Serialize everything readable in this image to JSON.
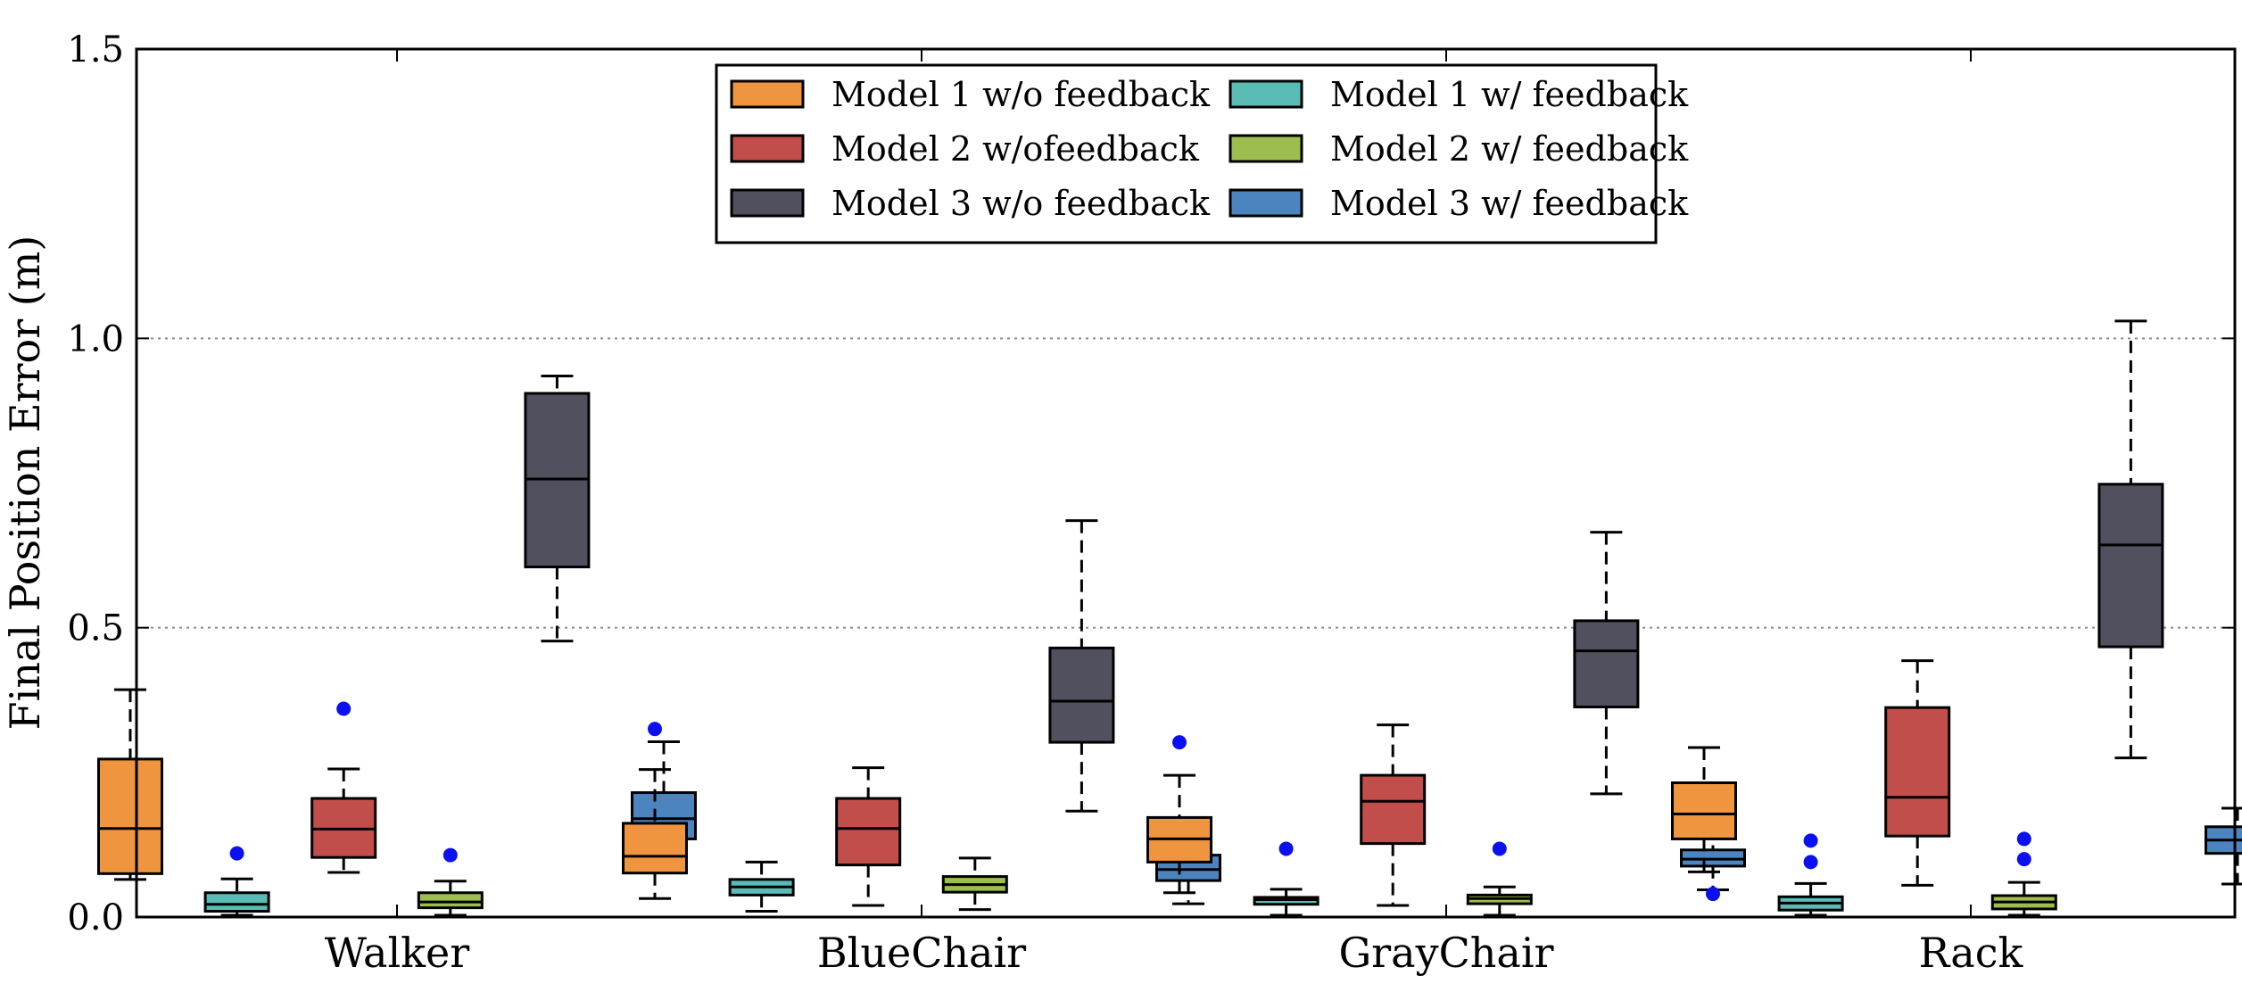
{
  "chart_data": {
    "type": "boxplot",
    "title": "",
    "xlabel": "",
    "ylabel": "Final Position Error (m)",
    "ylim": [
      0.0,
      1.5
    ],
    "yticks": [
      "0.0",
      "0.5",
      "1.0",
      "1.5"
    ],
    "ytick_values": [
      0.0,
      0.5,
      1.0,
      1.5
    ],
    "grid_lines": [
      0.5,
      1.0
    ],
    "grid_style": "dotted horizontal",
    "legend_position": "top-center",
    "categories": [
      "Walker",
      "BlueChair",
      "GrayChair",
      "Rack"
    ],
    "series": [
      {
        "name": "Model 1 w/o feedback",
        "color": "#F0953F",
        "boxes": [
          {
            "whislo": 0.065,
            "q1": 0.075,
            "med": 0.153,
            "q3": 0.273,
            "whishi": 0.393,
            "fliers": []
          },
          {
            "whislo": 0.032,
            "q1": 0.076,
            "med": 0.105,
            "q3": 0.162,
            "whishi": 0.255,
            "fliers": [
              0.325
            ]
          },
          {
            "whislo": 0.042,
            "q1": 0.095,
            "med": 0.135,
            "q3": 0.172,
            "whishi": 0.245,
            "fliers": [
              0.302
            ]
          },
          {
            "whislo": 0.078,
            "q1": 0.135,
            "med": 0.178,
            "q3": 0.232,
            "whishi": 0.293,
            "fliers": []
          }
        ]
      },
      {
        "name": "Model 1 w/ feedback",
        "color": "#5BBCB6",
        "boxes": [
          {
            "whislo": 0.003,
            "q1": 0.01,
            "med": 0.022,
            "q3": 0.042,
            "whishi": 0.066,
            "fliers": [
              0.11
            ]
          },
          {
            "whislo": 0.01,
            "q1": 0.038,
            "med": 0.052,
            "q3": 0.065,
            "whishi": 0.095,
            "fliers": []
          },
          {
            "whislo": 0.003,
            "q1": 0.022,
            "med": 0.03,
            "q3": 0.034,
            "whishi": 0.048,
            "fliers": [
              0.118
            ]
          },
          {
            "whislo": 0.003,
            "q1": 0.012,
            "med": 0.024,
            "q3": 0.035,
            "whishi": 0.058,
            "fliers": [
              0.095,
              0.132
            ]
          }
        ]
      },
      {
        "name": "Model 2 w/ofeedback",
        "color": "#C24E4C",
        "boxes": [
          {
            "whislo": 0.077,
            "q1": 0.103,
            "med": 0.152,
            "q3": 0.205,
            "whishi": 0.256,
            "fliers": [
              0.36
            ]
          },
          {
            "whislo": 0.02,
            "q1": 0.09,
            "med": 0.153,
            "q3": 0.205,
            "whishi": 0.258,
            "fliers": []
          },
          {
            "whislo": 0.02,
            "q1": 0.127,
            "med": 0.2,
            "q3": 0.245,
            "whishi": 0.332,
            "fliers": []
          },
          {
            "whislo": 0.055,
            "q1": 0.14,
            "med": 0.207,
            "q3": 0.362,
            "whishi": 0.443,
            "fliers": []
          }
        ]
      },
      {
        "name": "Model 2 w/ feedback",
        "color": "#9DBE4E",
        "boxes": [
          {
            "whislo": 0.003,
            "q1": 0.016,
            "med": 0.026,
            "q3": 0.042,
            "whishi": 0.062,
            "fliers": [
              0.107
            ]
          },
          {
            "whislo": 0.013,
            "q1": 0.043,
            "med": 0.056,
            "q3": 0.07,
            "whishi": 0.102,
            "fliers": []
          },
          {
            "whislo": 0.003,
            "q1": 0.023,
            "med": 0.032,
            "q3": 0.038,
            "whishi": 0.052,
            "fliers": [
              0.118
            ]
          },
          {
            "whislo": 0.003,
            "q1": 0.014,
            "med": 0.026,
            "q3": 0.037,
            "whishi": 0.06,
            "fliers": [
              0.1,
              0.135
            ]
          }
        ]
      },
      {
        "name": "Model 3 w/o feedback",
        "color": "#50505E",
        "boxes": [
          {
            "whislo": 0.477,
            "q1": 0.605,
            "med": 0.757,
            "q3": 0.905,
            "whishi": 0.935,
            "fliers": []
          },
          {
            "whislo": 0.183,
            "q1": 0.302,
            "med": 0.373,
            "q3": 0.465,
            "whishi": 0.685,
            "fliers": []
          },
          {
            "whislo": 0.213,
            "q1": 0.363,
            "med": 0.46,
            "q3": 0.512,
            "whishi": 0.665,
            "fliers": []
          },
          {
            "whislo": 0.275,
            "q1": 0.467,
            "med": 0.643,
            "q3": 0.748,
            "whishi": 1.03,
            "fliers": []
          }
        ]
      },
      {
        "name": "Model 3 w/ feedback",
        "color": "#4C84C0",
        "boxes": [
          {
            "whislo": 0.123,
            "q1": 0.135,
            "med": 0.17,
            "q3": 0.215,
            "whishi": 0.303,
            "fliers": []
          },
          {
            "whislo": 0.023,
            "q1": 0.063,
            "med": 0.082,
            "q3": 0.107,
            "whishi": 0.158,
            "fliers": []
          },
          {
            "whislo": 0.047,
            "q1": 0.088,
            "med": 0.1,
            "q3": 0.116,
            "whishi": 0.158,
            "fliers": [
              0.04,
              0.165
            ]
          },
          {
            "whislo": 0.057,
            "q1": 0.11,
            "med": 0.133,
            "q3": 0.156,
            "whishi": 0.188,
            "fliers": []
          }
        ]
      }
    ],
    "legend": {
      "columns": [
        [
          "Model 1 w/o feedback",
          "Model 2 w/ofeedback",
          "Model 3 w/o feedback"
        ],
        [
          "Model 1 w/ feedback",
          "Model 2 w/ feedback",
          "Model 3 w/ feedback"
        ]
      ]
    },
    "flier_color": "#0A10F0"
  }
}
